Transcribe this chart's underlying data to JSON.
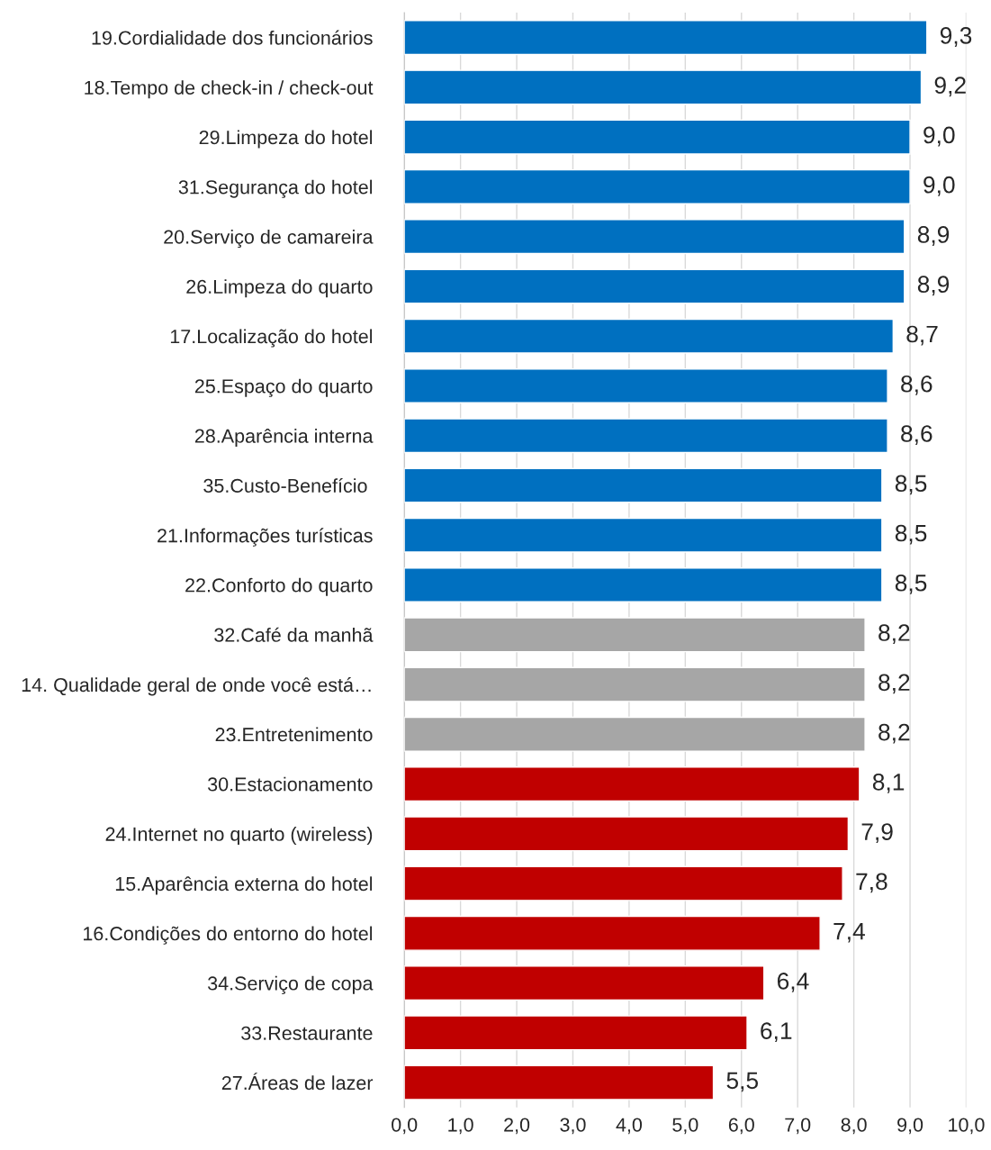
{
  "chart_data": {
    "type": "bar",
    "orientation": "horizontal",
    "categories": [
      "19.Cordialidade dos funcionários",
      "18.Tempo de check-in / check-out",
      "29.Limpeza do hotel",
      "31.Segurança do hotel",
      "20.Serviço de camareira",
      "26.Limpeza do quarto",
      "17.Localização do hotel",
      "25.Espaço do quarto",
      "28.Aparência interna",
      "35.Custo-Benefício ",
      "21.Informações turísticas",
      "22.Conforto do quarto",
      "32.Café da manhã",
      "14. Qualidade geral de onde você está…",
      "23.Entretenimento",
      "30.Estacionamento",
      "24.Internet no quarto (wireless)",
      "15.Aparência externa do hotel",
      "16.Condições do entorno do hotel",
      "34.Serviço de copa",
      "33.Restaurante",
      "27.Áreas de lazer"
    ],
    "values": [
      9.3,
      9.2,
      9.0,
      9.0,
      8.9,
      8.9,
      8.7,
      8.6,
      8.6,
      8.5,
      8.5,
      8.5,
      8.2,
      8.2,
      8.2,
      8.1,
      7.9,
      7.8,
      7.4,
      6.4,
      6.1,
      5.5
    ],
    "value_labels": [
      "9,3",
      "9,2",
      "9,0",
      "9,0",
      "8,9",
      "8,9",
      "8,7",
      "8,6",
      "8,6",
      "8,5",
      "8,5",
      "8,5",
      "8,2",
      "8,2",
      "8,2",
      "8,1",
      "7,9",
      "7,8",
      "7,4",
      "6,4",
      "6,1",
      "5,5"
    ],
    "colors": [
      "#0070c0",
      "#0070c0",
      "#0070c0",
      "#0070c0",
      "#0070c0",
      "#0070c0",
      "#0070c0",
      "#0070c0",
      "#0070c0",
      "#0070c0",
      "#0070c0",
      "#0070c0",
      "#a6a6a6",
      "#a6a6a6",
      "#a6a6a6",
      "#c00000",
      "#c00000",
      "#c00000",
      "#c00000",
      "#c00000",
      "#c00000",
      "#c00000"
    ],
    "xlim": [
      0,
      10
    ],
    "xticks": [
      {
        "value": 0,
        "label": "0,0"
      },
      {
        "value": 1,
        "label": "1,0"
      },
      {
        "value": 2,
        "label": "2,0"
      },
      {
        "value": 3,
        "label": "3,0"
      },
      {
        "value": 4,
        "label": "4,0"
      },
      {
        "value": 5,
        "label": "5,0"
      },
      {
        "value": 6,
        "label": "6,0"
      },
      {
        "value": 7,
        "label": "7,0"
      },
      {
        "value": 8,
        "label": "8,0"
      },
      {
        "value": 9,
        "label": "9,0"
      },
      {
        "value": 10,
        "label": "10,0"
      }
    ],
    "grid": "x",
    "legend": false
  }
}
